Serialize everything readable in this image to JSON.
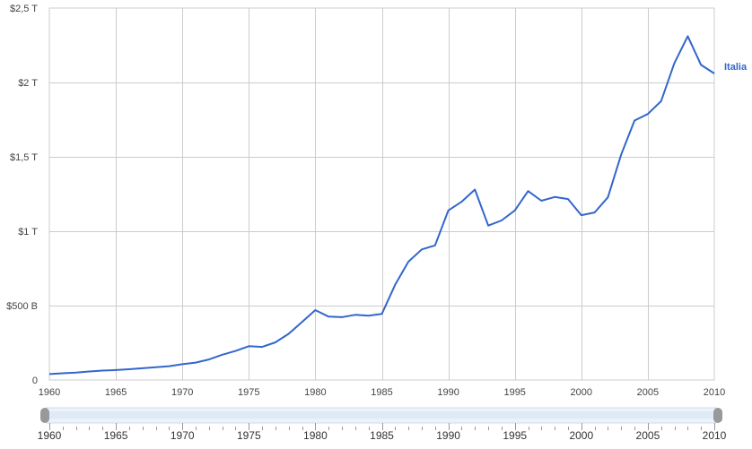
{
  "chart_data": {
    "type": "line",
    "title": "",
    "xlabel": "",
    "ylabel": "",
    "x": [
      1960,
      1961,
      1962,
      1963,
      1964,
      1965,
      1966,
      1967,
      1968,
      1969,
      1970,
      1971,
      1972,
      1973,
      1974,
      1975,
      1976,
      1977,
      1978,
      1979,
      1980,
      1981,
      1982,
      1983,
      1984,
      1985,
      1986,
      1987,
      1988,
      1989,
      1990,
      1991,
      1992,
      1993,
      1994,
      1995,
      1996,
      1997,
      1998,
      1999,
      2000,
      2001,
      2002,
      2003,
      2004,
      2005,
      2006,
      2007,
      2008,
      2009,
      2010
    ],
    "series": [
      {
        "name": "Italia",
        "color": "#3366cc",
        "values": [
          0.04,
          0.045,
          0.05,
          0.057,
          0.063,
          0.067,
          0.072,
          0.079,
          0.086,
          0.093,
          0.106,
          0.117,
          0.138,
          0.17,
          0.195,
          0.227,
          0.222,
          0.253,
          0.311,
          0.39,
          0.47,
          0.426,
          0.422,
          0.438,
          0.432,
          0.444,
          0.64,
          0.795,
          0.878,
          0.905,
          1.14,
          1.198,
          1.28,
          1.038,
          1.072,
          1.14,
          1.27,
          1.205,
          1.23,
          1.216,
          1.108,
          1.126,
          1.228,
          1.517,
          1.744,
          1.788,
          1.874,
          2.13,
          2.311,
          2.118,
          2.06
        ]
      }
    ],
    "xlim": [
      1960,
      2010
    ],
    "ylim": [
      0,
      2.5
    ],
    "y_ticks": [
      0,
      0.5,
      1,
      1.5,
      2,
      2.5
    ],
    "y_tick_labels": [
      "0",
      "$500 B",
      "$1 T",
      "$1,5 T",
      "$2 T",
      "$2,5 T"
    ],
    "x_ticks": [
      1960,
      1965,
      1970,
      1975,
      1980,
      1985,
      1990,
      1995,
      2000,
      2005,
      2010
    ],
    "x_tick_labels": [
      "1960",
      "1965",
      "1970",
      "1975",
      "1980",
      "1985",
      "1990",
      "1995",
      "2000",
      "2005",
      "2010"
    ],
    "grid": true,
    "legend": "right, at line end"
  },
  "slider": {
    "range": [
      1960,
      2010
    ],
    "labels": [
      "1960",
      "1965",
      "1970",
      "1975",
      "1980",
      "1985",
      "1990",
      "1995",
      "2000",
      "2005",
      "2010"
    ]
  }
}
